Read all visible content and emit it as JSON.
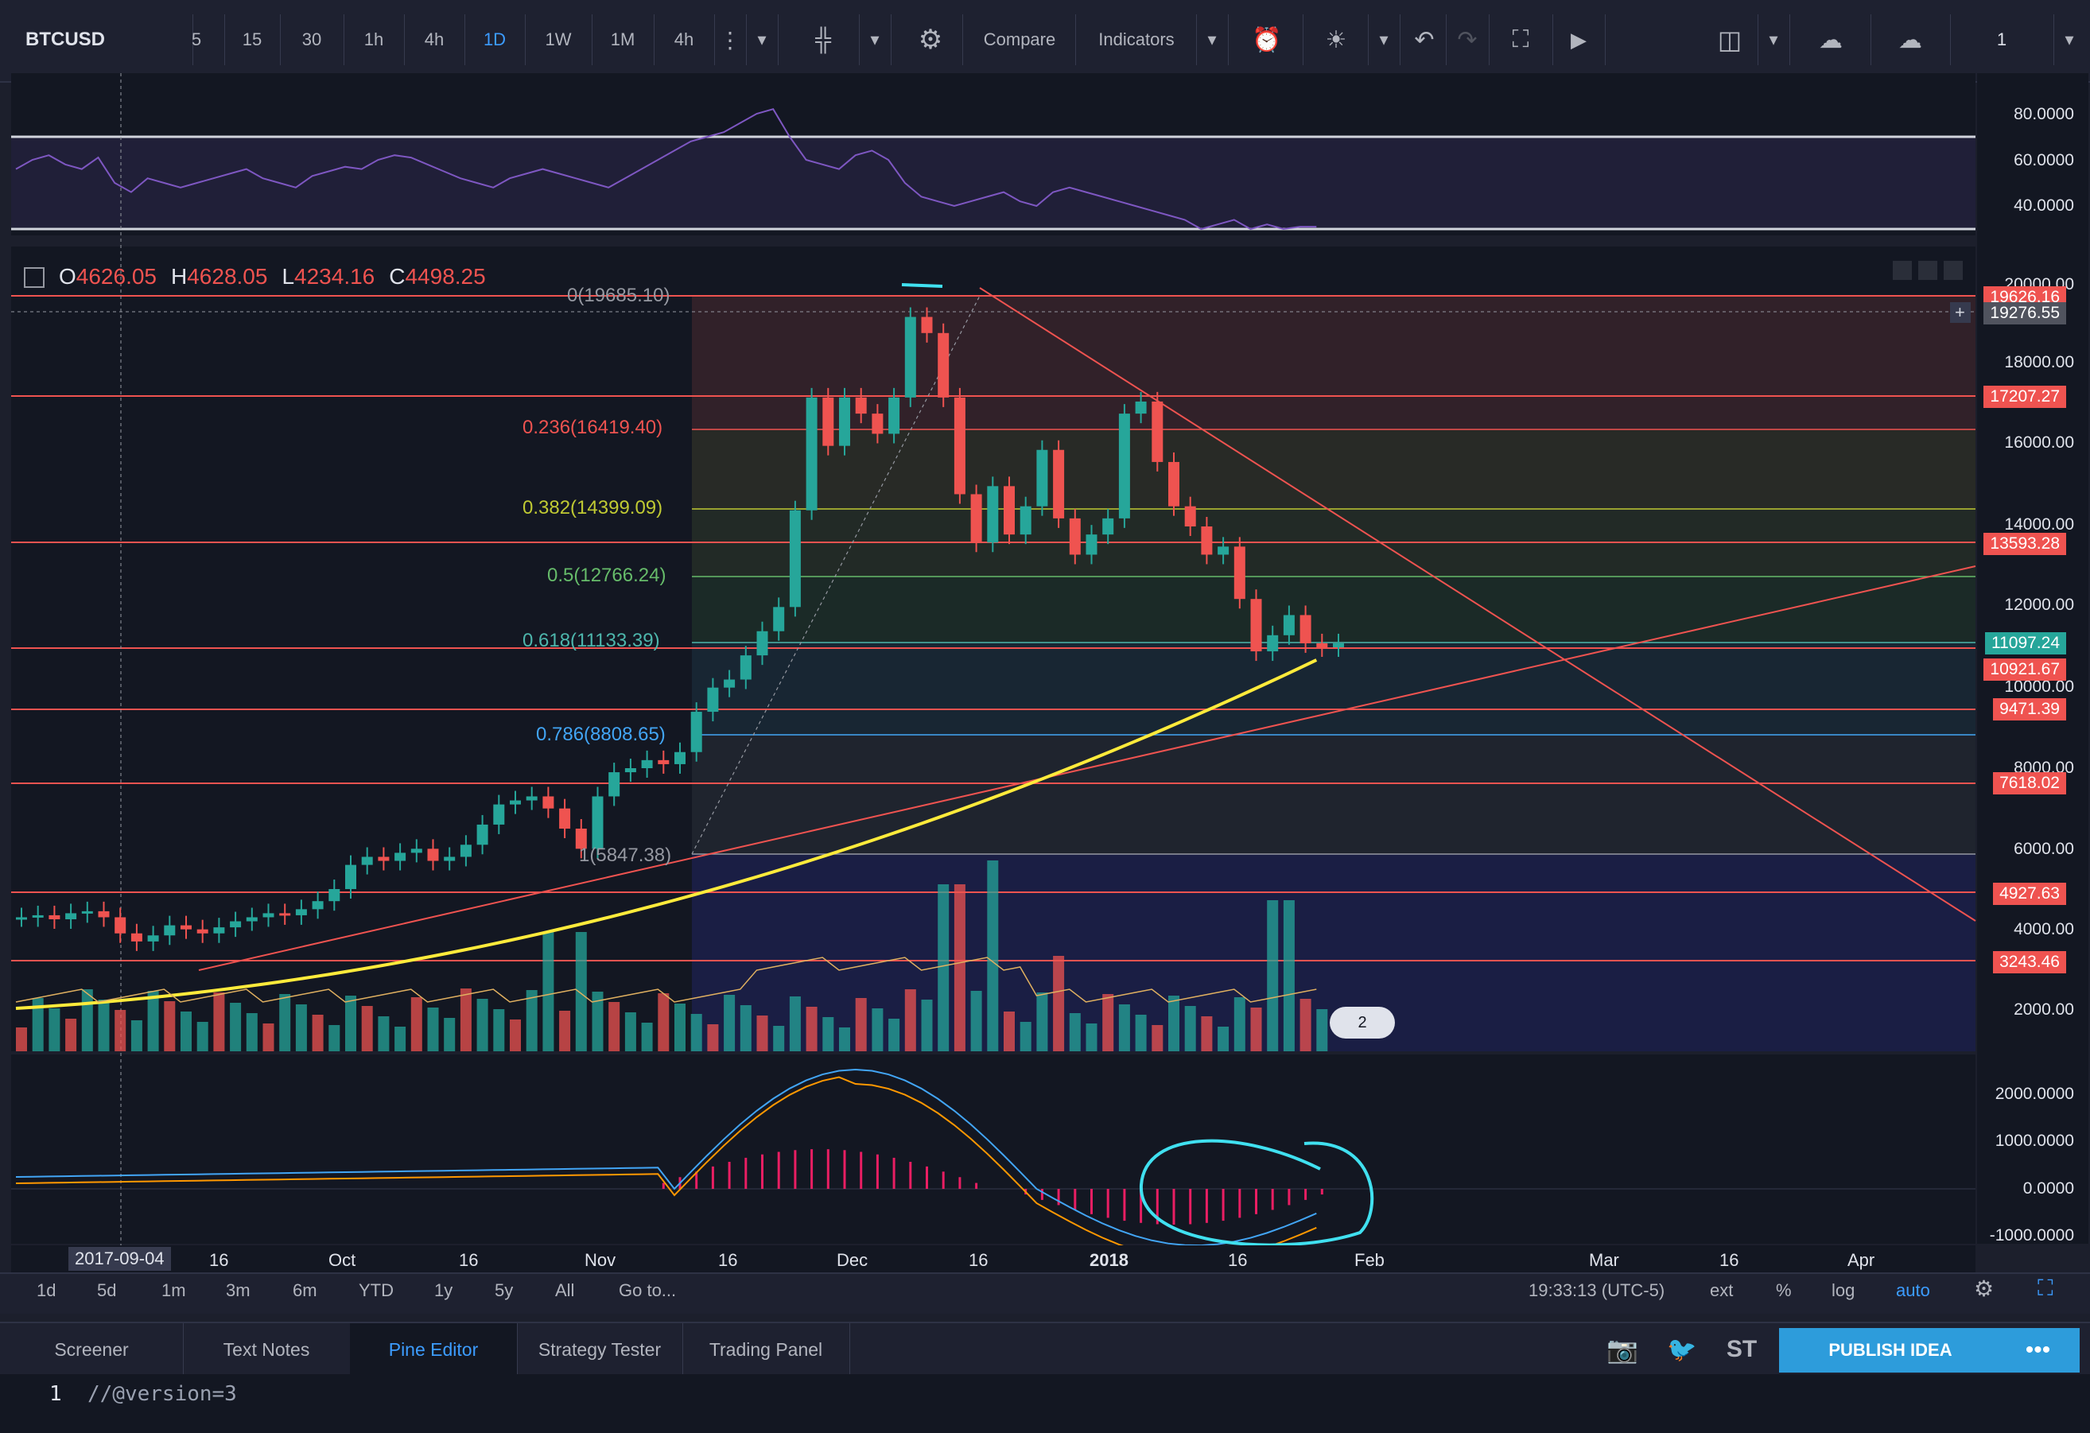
{
  "toolbar": {
    "symbol": "BTCUSD",
    "intervals": [
      "5",
      "15",
      "30",
      "1h",
      "4h",
      "1D",
      "1W",
      "1M",
      "4h"
    ],
    "active_interval": "1D",
    "compare_label": "Compare",
    "indicators_label": "Indicators",
    "layout_count": "1",
    "icons": [
      "more-vert-icon",
      "chevron-down-icon",
      "candles-icon",
      "gear-icon",
      "alert-add-icon",
      "lightbulb-icon",
      "undo-icon",
      "redo-icon",
      "fullscreen-icon",
      "play-icon",
      "layout-icon",
      "cloud-download-icon",
      "cloud-upload-icon"
    ]
  },
  "ohlc": {
    "o_label": "O",
    "o": "4626.05",
    "h_label": "H",
    "h": "4628.05",
    "l_label": "L",
    "l": "4234.16",
    "c_label": "C",
    "c": "4498.25"
  },
  "rsi": {
    "axis": [
      "80.0000",
      "60.0000",
      "40.0000"
    ],
    "series": [
      66,
      70,
      72,
      68,
      66,
      71,
      60,
      56,
      62,
      60,
      58,
      60,
      62,
      64,
      66,
      62,
      60,
      58,
      63,
      65,
      67,
      66,
      70,
      72,
      71,
      68,
      65,
      62,
      60,
      58,
      62,
      64,
      66,
      64,
      62,
      60,
      58,
      62,
      66,
      70,
      74,
      78,
      80,
      82,
      86,
      90,
      92,
      80,
      70,
      68,
      66,
      72,
      74,
      70,
      60,
      54,
      52,
      50,
      52,
      54,
      56,
      52,
      50,
      56,
      58,
      56,
      54,
      52,
      50,
      48,
      46,
      44,
      40,
      42,
      44,
      40,
      42,
      40,
      41,
      41
    ]
  },
  "fib": [
    {
      "label": "0(19685.10)",
      "color": "#9598a1"
    },
    {
      "label": "0.236(16419.40)",
      "color": "#ef5350"
    },
    {
      "label": "0.382(14399.09)",
      "color": "#c0ca33"
    },
    {
      "label": "0.5(12766.24)",
      "color": "#66bb6a"
    },
    {
      "label": "0.618(11133.39)",
      "color": "#4db6ac"
    },
    {
      "label": "0.786(8808.65)",
      "color": "#42a5f5"
    },
    {
      "label": "1(5847.38)",
      "color": "#9598a1"
    }
  ],
  "price_axis": [
    "20000.00",
    "18000.00",
    "16000.00",
    "14000.00",
    "12000.00",
    "10000.00",
    "8000.00",
    "6000.00",
    "4000.00",
    "2000.00"
  ],
  "price_tags": [
    {
      "label": "19626.16",
      "color": "#ef5350"
    },
    {
      "label": "19276.55",
      "color": "#50535e"
    },
    {
      "label": "17207.27",
      "color": "#ef5350"
    },
    {
      "label": "13593.28",
      "color": "#ef5350"
    },
    {
      "label": "11097.24",
      "color": "#26a69a"
    },
    {
      "label": "10921.67",
      "color": "#ef5350"
    },
    {
      "label": "9471.39",
      "color": "#ef5350"
    },
    {
      "label": "7618.02",
      "color": "#ef5350"
    },
    {
      "label": "4927.63",
      "color": "#ef5350"
    },
    {
      "label": "3243.46",
      "color": "#ef5350"
    }
  ],
  "macd": {
    "axis": [
      "2000.0000",
      "1000.0000",
      "0.0000",
      "-1000.0000"
    ]
  },
  "time_axis": [
    "2017-09-04",
    "16",
    "Oct",
    "16",
    "Nov",
    "16",
    "Dec",
    "16",
    "2018",
    "16",
    "Feb",
    "Mar",
    "16",
    "Apr"
  ],
  "range_buttons": [
    "1d",
    "5d",
    "1m",
    "3m",
    "6m",
    "YTD",
    "1y",
    "5y",
    "All",
    "Go to..."
  ],
  "status": {
    "time": "19:33:13 (UTC-5)",
    "ext": "ext",
    "pct": "%",
    "log": "log",
    "auto": "auto"
  },
  "tabs": [
    "Screener",
    "Text Notes",
    "Pine Editor",
    "Strategy Tester",
    "Trading Panel"
  ],
  "active_tab": "Pine Editor",
  "social": {
    "st": "ST",
    "publish": "PUBLISH IDEA",
    "more": "•••"
  },
  "editor": {
    "line1_num": "1",
    "line1": "//@version=3"
  },
  "badge": "2",
  "colors": {
    "up": "#26a69a",
    "down": "#ef5350",
    "ma": "#ffeb3b",
    "rsi": "#7e57c2",
    "accent": "#2d9cdb",
    "annotation": "#40e0f0"
  }
}
